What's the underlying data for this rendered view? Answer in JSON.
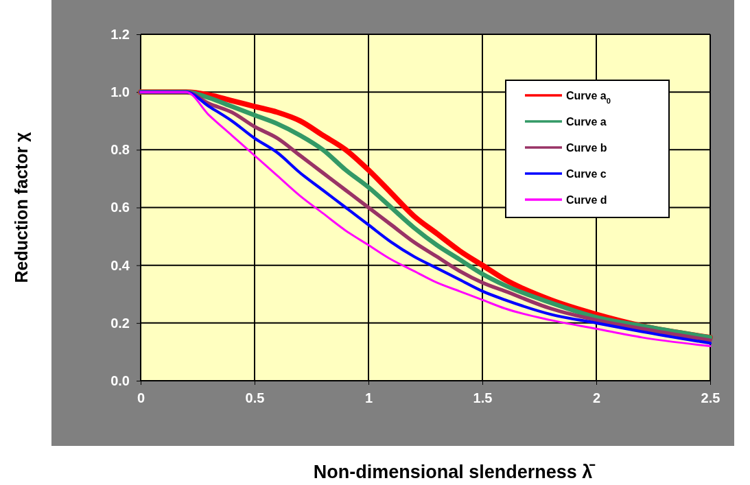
{
  "chart_data": {
    "type": "line",
    "xlabel": "Non-dimensional slenderness λ̄",
    "ylabel": "Reduction factor χ",
    "xlim": [
      0,
      2.5
    ],
    "xticks": [
      0,
      {
        "value": 0.5,
        "label": "0.5"
      },
      1,
      {
        "value": 1.5,
        "label": "1.5"
      },
      2,
      {
        "value": 2.5,
        "label": "2.5"
      }
    ],
    "ylim": [
      0,
      1.2
    ],
    "yticks": [
      {
        "value": 0,
        "label": "0.0"
      },
      {
        "value": 0.2,
        "label": "0.2"
      },
      {
        "value": 0.4,
        "label": "0.4"
      },
      {
        "value": 0.6,
        "label": "0.6"
      },
      {
        "value": 0.8,
        "label": "0.8"
      },
      {
        "value": 1,
        "label": "1.0"
      },
      {
        "value": 1.2,
        "label": "1.2"
      }
    ],
    "grid": true,
    "legend": "top right",
    "marker": "none",
    "line_style": "solid",
    "x": [
      0,
      0.2,
      0.3,
      0.4,
      0.5,
      0.6,
      0.7,
      0.8,
      0.9,
      1.0,
      1.1,
      1.2,
      1.3,
      1.4,
      1.5,
      1.6,
      1.8,
      2.0,
      2.2,
      2.5
    ],
    "series": [
      {
        "name": "Curve a$_{0}$",
        "color": "#ff0000",
        "values": [
          1,
          1,
          0.99,
          0.97,
          0.95,
          0.93,
          0.9,
          0.85,
          0.8,
          0.73,
          0.65,
          0.57,
          0.51,
          0.45,
          0.4,
          0.35,
          0.28,
          0.23,
          0.19,
          0.15
        ]
      },
      {
        "name": "Curve a",
        "color": "#339966",
        "values": [
          1,
          1,
          0.98,
          0.95,
          0.92,
          0.89,
          0.85,
          0.8,
          0.73,
          0.67,
          0.6,
          0.53,
          0.47,
          0.42,
          0.37,
          0.33,
          0.27,
          0.22,
          0.19,
          0.15
        ]
      },
      {
        "name": "Curve b",
        "color": "#993366",
        "values": [
          1,
          1,
          0.96,
          0.93,
          0.88,
          0.84,
          0.78,
          0.72,
          0.66,
          0.6,
          0.54,
          0.48,
          0.43,
          0.38,
          0.34,
          0.31,
          0.25,
          0.21,
          0.18,
          0.14
        ]
      },
      {
        "name": "Curve c",
        "color": "#0000ff",
        "values": [
          1,
          1,
          0.95,
          0.9,
          0.84,
          0.79,
          0.72,
          0.66,
          0.6,
          0.54,
          0.48,
          0.43,
          0.39,
          0.35,
          0.31,
          0.28,
          0.23,
          0.2,
          0.17,
          0.13
        ]
      },
      {
        "name": "Curve d",
        "color": "#ff00ff",
        "values": [
          1,
          1,
          0.92,
          0.85,
          0.78,
          0.71,
          0.64,
          0.58,
          0.52,
          0.47,
          0.42,
          0.38,
          0.34,
          0.31,
          0.28,
          0.25,
          0.21,
          0.18,
          0.15,
          0.12
        ]
      }
    ]
  }
}
